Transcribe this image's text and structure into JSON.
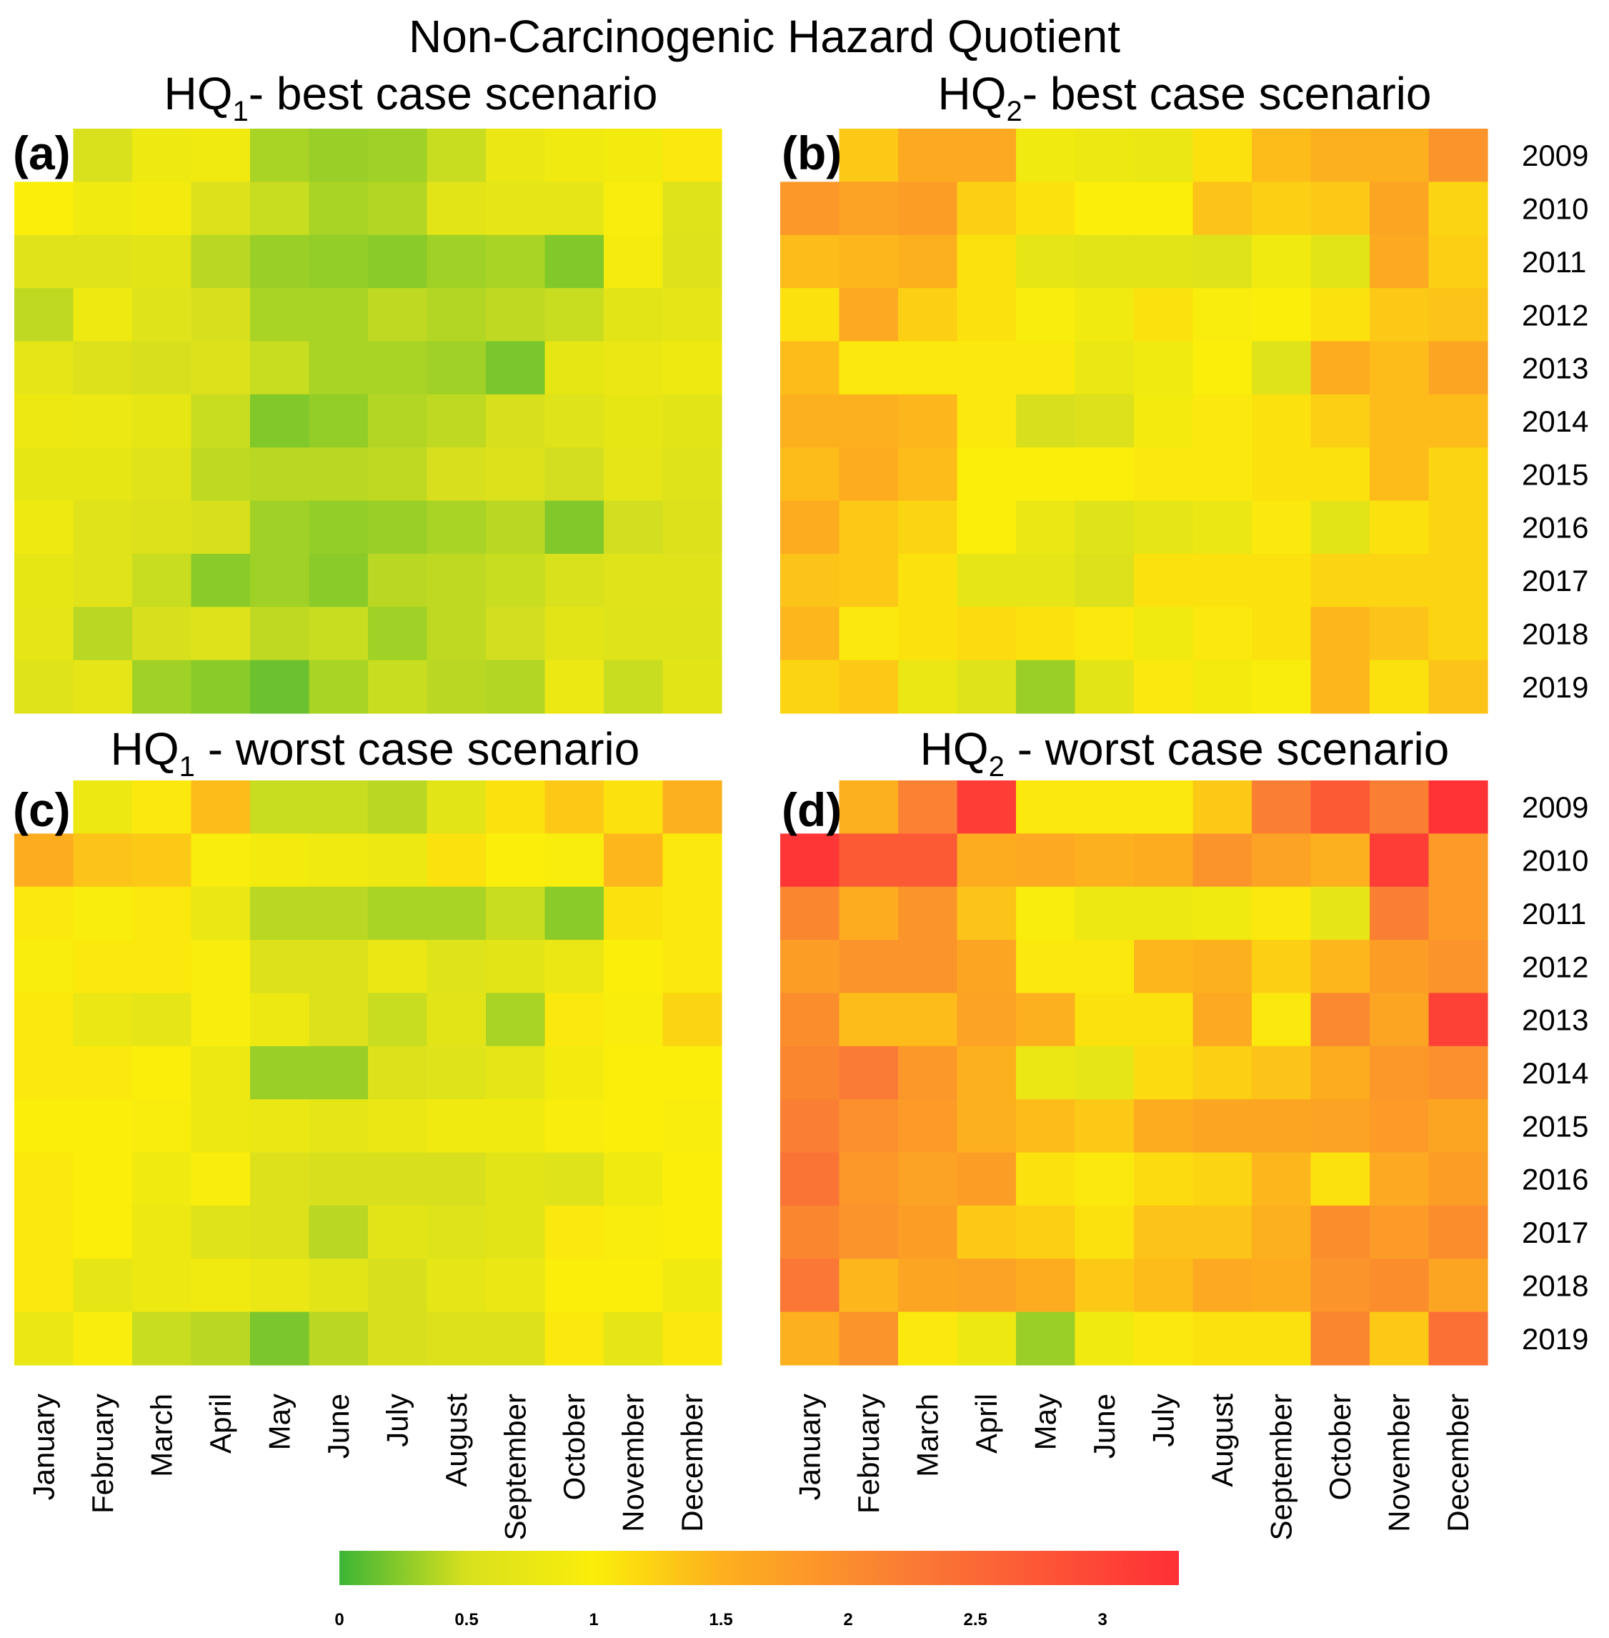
{
  "chart_data": {
    "type": "heatmap",
    "title": "Non-Carcinogenic Hazard Quotient",
    "rows": [
      "2009",
      "2010",
      "2011",
      "2012",
      "2013",
      "2014",
      "2015",
      "2016",
      "2017",
      "2018",
      "2019"
    ],
    "columns": [
      "January",
      "February",
      "March",
      "April",
      "May",
      "June",
      "July",
      "August",
      "September",
      "October",
      "November",
      "December"
    ],
    "colorbar": {
      "min": 0,
      "max": 3.3,
      "ticks": [
        "0",
        "0.5",
        "1",
        "1.5",
        "2",
        "2.5",
        "3"
      ],
      "colors": [
        "#3cb535",
        "#d8e01e",
        "#fbee0a",
        "#fdb01e",
        "#fa7b35",
        "#ff2f36"
      ]
    },
    "panels": [
      {
        "tag": "(a)",
        "title_main": "HQ",
        "title_sub": "1",
        "title_rest": "- best case scenario",
        "values": [
          [
            null,
            0.52,
            0.82,
            0.85,
            0.35,
            0.3,
            0.32,
            0.45,
            0.75,
            0.85,
            0.9,
            1.05
          ],
          [
            1.0,
            0.85,
            0.9,
            0.55,
            0.45,
            0.35,
            0.38,
            0.65,
            0.7,
            0.7,
            0.95,
            0.6
          ],
          [
            0.62,
            0.62,
            0.65,
            0.4,
            0.3,
            0.28,
            0.25,
            0.32,
            0.35,
            0.22,
            0.92,
            0.58
          ],
          [
            0.42,
            0.82,
            0.6,
            0.5,
            0.35,
            0.35,
            0.42,
            0.38,
            0.42,
            0.45,
            0.65,
            0.7
          ],
          [
            0.68,
            0.55,
            0.5,
            0.55,
            0.45,
            0.35,
            0.35,
            0.32,
            0.2,
            0.72,
            0.75,
            0.82
          ],
          [
            0.8,
            0.78,
            0.72,
            0.45,
            0.22,
            0.28,
            0.38,
            0.42,
            0.5,
            0.6,
            0.72,
            0.65
          ],
          [
            0.72,
            0.72,
            0.62,
            0.42,
            0.4,
            0.4,
            0.42,
            0.5,
            0.55,
            0.48,
            0.68,
            0.6
          ],
          [
            0.82,
            0.62,
            0.55,
            0.5,
            0.32,
            0.28,
            0.3,
            0.35,
            0.4,
            0.22,
            0.48,
            0.55
          ],
          [
            0.72,
            0.62,
            0.45,
            0.25,
            0.32,
            0.25,
            0.4,
            0.42,
            0.45,
            0.52,
            0.62,
            0.62
          ],
          [
            0.7,
            0.4,
            0.5,
            0.58,
            0.42,
            0.45,
            0.32,
            0.42,
            0.48,
            0.65,
            0.6,
            0.6
          ],
          [
            0.6,
            0.68,
            0.32,
            0.25,
            0.15,
            0.35,
            0.45,
            0.4,
            0.38,
            0.78,
            0.45,
            0.65
          ]
        ]
      },
      {
        "tag": "(b)",
        "title_main": "HQ",
        "title_sub": "2",
        "title_rest": "- best case scenario",
        "values": [
          [
            null,
            1.3,
            1.6,
            1.6,
            0.85,
            0.8,
            0.75,
            1.1,
            1.4,
            1.5,
            1.5,
            1.9
          ],
          [
            1.85,
            1.7,
            1.75,
            1.25,
            1.1,
            1.0,
            1.0,
            1.35,
            1.25,
            1.3,
            1.65,
            1.2
          ],
          [
            1.4,
            1.45,
            1.5,
            1.1,
            0.7,
            0.65,
            0.65,
            0.6,
            0.85,
            0.65,
            1.6,
            1.25
          ],
          [
            1.1,
            1.6,
            1.25,
            1.1,
            0.95,
            0.85,
            1.1,
            0.95,
            1.0,
            1.1,
            1.3,
            1.35
          ],
          [
            1.4,
            1.05,
            1.05,
            1.05,
            1.05,
            0.75,
            0.85,
            1.0,
            0.6,
            1.55,
            1.4,
            1.65
          ],
          [
            1.5,
            1.5,
            1.45,
            1.05,
            0.5,
            0.55,
            0.9,
            1.05,
            1.1,
            1.25,
            1.4,
            1.4
          ],
          [
            1.4,
            1.55,
            1.4,
            1.0,
            1.0,
            1.0,
            1.05,
            1.05,
            1.1,
            1.1,
            1.4,
            1.2
          ],
          [
            1.55,
            1.3,
            1.2,
            1.0,
            0.75,
            0.6,
            0.7,
            0.75,
            1.05,
            0.65,
            1.1,
            1.2
          ],
          [
            1.35,
            1.3,
            1.1,
            0.7,
            0.7,
            0.55,
            1.1,
            1.1,
            1.1,
            1.2,
            1.2,
            1.2
          ],
          [
            1.45,
            1.05,
            1.1,
            1.15,
            1.1,
            1.05,
            0.85,
            1.05,
            1.1,
            1.45,
            1.35,
            1.2
          ],
          [
            1.2,
            1.3,
            0.75,
            0.6,
            0.3,
            0.65,
            1.05,
            0.9,
            0.95,
            1.45,
            1.1,
            1.35
          ]
        ]
      },
      {
        "tag": "(c)",
        "title_main": "HQ",
        "title_sub": "1",
        "title_rest": " - worst case scenario",
        "values": [
          [
            null,
            0.8,
            1.05,
            1.4,
            0.45,
            0.45,
            0.4,
            0.65,
            1.1,
            1.3,
            1.1,
            1.5
          ],
          [
            1.55,
            1.35,
            1.3,
            0.95,
            0.9,
            0.85,
            0.8,
            1.1,
            1.0,
            0.95,
            1.45,
            1.05
          ],
          [
            1.05,
            0.95,
            1.05,
            0.75,
            0.4,
            0.4,
            0.35,
            0.35,
            0.45,
            0.25,
            1.1,
            1.05
          ],
          [
            0.95,
            1.05,
            1.05,
            0.95,
            0.55,
            0.55,
            0.75,
            0.6,
            0.65,
            0.75,
            1.0,
            1.05
          ],
          [
            1.05,
            0.75,
            0.7,
            0.95,
            0.8,
            0.55,
            0.45,
            0.65,
            0.35,
            1.05,
            0.95,
            1.2
          ],
          [
            1.05,
            1.05,
            1.0,
            0.8,
            0.3,
            0.3,
            0.55,
            0.6,
            0.7,
            0.9,
            1.0,
            1.0
          ],
          [
            1.0,
            1.0,
            0.95,
            0.8,
            0.75,
            0.7,
            0.75,
            0.85,
            0.85,
            0.95,
            1.0,
            0.95
          ],
          [
            1.05,
            1.0,
            0.85,
            0.95,
            0.55,
            0.5,
            0.5,
            0.5,
            0.65,
            0.6,
            0.85,
            1.0
          ],
          [
            1.05,
            1.0,
            0.8,
            0.6,
            0.55,
            0.4,
            0.65,
            0.6,
            0.65,
            1.05,
            0.95,
            1.0
          ],
          [
            1.05,
            0.7,
            0.8,
            0.85,
            0.75,
            0.65,
            0.5,
            0.7,
            0.75,
            1.0,
            1.0,
            0.85
          ],
          [
            0.75,
            0.95,
            0.45,
            0.4,
            0.2,
            0.4,
            0.5,
            0.55,
            0.55,
            1.05,
            0.7,
            1.05
          ]
        ]
      },
      {
        "tag": "(d)",
        "title_main": "HQ",
        "title_sub": "2",
        "title_rest": " - worst case scenario",
        "values": [
          [
            null,
            1.5,
            2.15,
            3.1,
            1.05,
            1.05,
            1.05,
            1.3,
            2.2,
            2.7,
            2.2,
            3.25
          ],
          [
            3.2,
            2.7,
            2.7,
            1.55,
            1.6,
            1.5,
            1.55,
            1.9,
            1.7,
            1.5,
            3.1,
            1.8
          ],
          [
            2.1,
            1.55,
            1.9,
            1.35,
            0.95,
            0.8,
            0.8,
            0.85,
            1.05,
            0.7,
            2.2,
            1.8
          ],
          [
            1.75,
            1.9,
            1.9,
            1.65,
            1.05,
            1.05,
            1.45,
            1.5,
            1.25,
            1.45,
            1.75,
            1.9
          ],
          [
            2.0,
            1.4,
            1.4,
            1.7,
            1.5,
            1.1,
            1.1,
            1.6,
            1.05,
            2.05,
            1.65,
            3.05
          ],
          [
            2.1,
            2.25,
            1.85,
            1.5,
            0.75,
            0.7,
            1.15,
            1.25,
            1.35,
            1.55,
            1.85,
            1.95
          ],
          [
            2.2,
            1.95,
            1.8,
            1.5,
            1.4,
            1.3,
            1.55,
            1.65,
            1.65,
            1.7,
            1.8,
            1.65
          ],
          [
            2.35,
            1.85,
            1.7,
            1.75,
            1.1,
            1.05,
            1.15,
            1.2,
            1.45,
            1.1,
            1.6,
            1.75
          ],
          [
            2.1,
            1.9,
            1.75,
            1.3,
            1.25,
            1.1,
            1.35,
            1.35,
            1.5,
            2.0,
            1.8,
            2.0
          ],
          [
            2.3,
            1.45,
            1.65,
            1.7,
            1.55,
            1.3,
            1.4,
            1.6,
            1.55,
            1.9,
            2.0,
            1.65
          ],
          [
            1.5,
            1.9,
            1.05,
            0.8,
            0.3,
            0.85,
            1.05,
            1.1,
            1.1,
            2.1,
            1.3,
            2.4
          ]
        ]
      }
    ]
  }
}
